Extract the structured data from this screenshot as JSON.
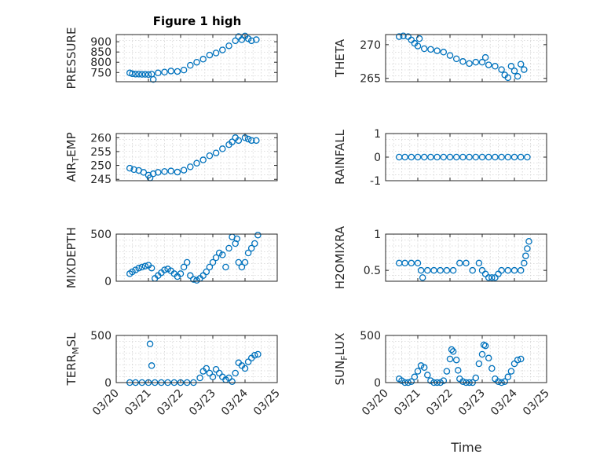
{
  "chart_data": [
    {
      "type": "scatter",
      "panel": "pressure",
      "title": "Figure 1 high",
      "ylabel": "PRESSURE",
      "xlabel": "",
      "xlim": [
        0,
        5
      ],
      "ylim": [
        705,
        935
      ],
      "yticks": [
        750,
        800,
        850,
        900
      ],
      "xticks": [
        0,
        1,
        2,
        3,
        4,
        5
      ],
      "xticklabels": [
        "",
        "",
        "",
        "",
        "",
        ""
      ],
      "grid": true,
      "marker_color": "#0072BD",
      "points": [
        [
          0.42,
          748
        ],
        [
          0.5,
          744
        ],
        [
          0.6,
          742
        ],
        [
          0.7,
          742
        ],
        [
          0.8,
          741
        ],
        [
          0.9,
          741
        ],
        [
          1.0,
          740
        ],
        [
          1.1,
          742
        ],
        [
          1.15,
          716
        ],
        [
          1.3,
          748
        ],
        [
          1.5,
          752
        ],
        [
          1.7,
          757
        ],
        [
          1.9,
          755
        ],
        [
          2.1,
          762
        ],
        [
          2.3,
          785
        ],
        [
          2.5,
          800
        ],
        [
          2.7,
          815
        ],
        [
          2.9,
          835
        ],
        [
          3.1,
          845
        ],
        [
          3.3,
          860
        ],
        [
          3.5,
          880
        ],
        [
          3.7,
          905
        ],
        [
          3.8,
          925
        ],
        [
          3.9,
          910
        ],
        [
          4.0,
          928
        ],
        [
          4.1,
          915
        ],
        [
          4.2,
          905
        ],
        [
          4.35,
          910
        ]
      ]
    },
    {
      "type": "scatter",
      "panel": "theta",
      "title": "",
      "ylabel": "THETA",
      "xlabel": "",
      "xlim": [
        0,
        5
      ],
      "ylim": [
        264.5,
        271.5
      ],
      "yticks": [
        265,
        270
      ],
      "xticks": [
        0,
        1,
        2,
        3,
        4,
        5
      ],
      "xticklabels": [
        "",
        "",
        "",
        "",
        "",
        ""
      ],
      "grid": true,
      "marker_color": "#0072BD",
      "points": [
        [
          0.42,
          271.2
        ],
        [
          0.55,
          271.3
        ],
        [
          0.7,
          271.2
        ],
        [
          0.8,
          270.7
        ],
        [
          0.9,
          270.2
        ],
        [
          1.0,
          269.8
        ],
        [
          1.05,
          270.9
        ],
        [
          1.2,
          269.4
        ],
        [
          1.4,
          269.3
        ],
        [
          1.6,
          269.1
        ],
        [
          1.8,
          268.9
        ],
        [
          2.0,
          268.4
        ],
        [
          2.2,
          267.9
        ],
        [
          2.4,
          267.5
        ],
        [
          2.6,
          267.2
        ],
        [
          2.8,
          267.4
        ],
        [
          3.0,
          267.4
        ],
        [
          3.1,
          268.1
        ],
        [
          3.2,
          267.0
        ],
        [
          3.4,
          266.8
        ],
        [
          3.6,
          266.3
        ],
        [
          3.7,
          265.5
        ],
        [
          3.8,
          265.1
        ],
        [
          3.9,
          266.8
        ],
        [
          4.0,
          266.1
        ],
        [
          4.1,
          265.3
        ],
        [
          4.2,
          267.1
        ],
        [
          4.3,
          266.3
        ]
      ]
    },
    {
      "type": "scatter",
      "panel": "air_temp",
      "title": "",
      "ylabel": "AIR_TEMP",
      "xlabel": "",
      "xlim": [
        0,
        5
      ],
      "ylim": [
        244.5,
        261.5
      ],
      "yticks": [
        245,
        250,
        255,
        260
      ],
      "xticks": [
        0,
        1,
        2,
        3,
        4,
        5
      ],
      "xticklabels": [
        "",
        "",
        "",
        "",
        "",
        ""
      ],
      "grid": true,
      "marker_color": "#0072BD",
      "points": [
        [
          0.42,
          249.0
        ],
        [
          0.55,
          248.5
        ],
        [
          0.7,
          248.2
        ],
        [
          0.85,
          247.5
        ],
        [
          1.0,
          246.5
        ],
        [
          1.05,
          245.5
        ],
        [
          1.15,
          247.0
        ],
        [
          1.3,
          247.5
        ],
        [
          1.5,
          247.8
        ],
        [
          1.7,
          248.0
        ],
        [
          1.9,
          247.6
        ],
        [
          2.1,
          248.3
        ],
        [
          2.3,
          249.5
        ],
        [
          2.5,
          250.8
        ],
        [
          2.7,
          252.0
        ],
        [
          2.9,
          253.5
        ],
        [
          3.1,
          254.5
        ],
        [
          3.3,
          256.0
        ],
        [
          3.5,
          257.5
        ],
        [
          3.6,
          258.5
        ],
        [
          3.7,
          260.0
        ],
        [
          3.8,
          259.0
        ],
        [
          4.0,
          260.0
        ],
        [
          4.1,
          259.5
        ],
        [
          4.2,
          259.0
        ],
        [
          4.35,
          259.0
        ]
      ]
    },
    {
      "type": "scatter",
      "panel": "rainfall",
      "title": "",
      "ylabel": "RAINFALL",
      "xlabel": "",
      "xlim": [
        0,
        5
      ],
      "ylim": [
        -1,
        1
      ],
      "yticks": [
        -1,
        0,
        1
      ],
      "xticks": [
        0,
        1,
        2,
        3,
        4,
        5
      ],
      "xticklabels": [
        "",
        "",
        "",
        "",
        "",
        ""
      ],
      "grid": true,
      "marker_color": "#0072BD",
      "points": [
        [
          0.42,
          0
        ],
        [
          0.6,
          0
        ],
        [
          0.8,
          0
        ],
        [
          1.0,
          0
        ],
        [
          1.2,
          0
        ],
        [
          1.4,
          0
        ],
        [
          1.6,
          0
        ],
        [
          1.8,
          0
        ],
        [
          2.0,
          0
        ],
        [
          2.2,
          0
        ],
        [
          2.4,
          0
        ],
        [
          2.6,
          0
        ],
        [
          2.8,
          0
        ],
        [
          3.0,
          0
        ],
        [
          3.2,
          0
        ],
        [
          3.4,
          0
        ],
        [
          3.6,
          0
        ],
        [
          3.8,
          0
        ],
        [
          4.0,
          0
        ],
        [
          4.2,
          0
        ],
        [
          4.4,
          0
        ]
      ]
    },
    {
      "type": "scatter",
      "panel": "mixdepth",
      "title": "",
      "ylabel": "MIXDEPTH",
      "xlabel": "",
      "xlim": [
        0,
        5
      ],
      "ylim": [
        0,
        500
      ],
      "yticks": [
        0,
        500
      ],
      "xticks": [
        0,
        1,
        2,
        3,
        4,
        5
      ],
      "xticklabels": [
        "",
        "",
        "",
        "",
        "",
        ""
      ],
      "grid": true,
      "marker_color": "#0072BD",
      "points": [
        [
          0.42,
          80
        ],
        [
          0.5,
          100
        ],
        [
          0.6,
          120
        ],
        [
          0.7,
          140
        ],
        [
          0.8,
          150
        ],
        [
          0.9,
          160
        ],
        [
          1.0,
          170
        ],
        [
          1.1,
          140
        ],
        [
          1.2,
          30
        ],
        [
          1.3,
          60
        ],
        [
          1.4,
          90
        ],
        [
          1.5,
          120
        ],
        [
          1.6,
          130
        ],
        [
          1.7,
          110
        ],
        [
          1.8,
          80
        ],
        [
          1.9,
          50
        ],
        [
          2.0,
          80
        ],
        [
          2.1,
          150
        ],
        [
          2.2,
          200
        ],
        [
          2.3,
          60
        ],
        [
          2.4,
          20
        ],
        [
          2.5,
          10
        ],
        [
          2.6,
          30
        ],
        [
          2.7,
          60
        ],
        [
          2.8,
          100
        ],
        [
          2.9,
          150
        ],
        [
          3.0,
          200
        ],
        [
          3.1,
          250
        ],
        [
          3.2,
          300
        ],
        [
          3.3,
          280
        ],
        [
          3.4,
          150
        ],
        [
          3.5,
          350
        ],
        [
          3.6,
          470
        ],
        [
          3.7,
          400
        ],
        [
          3.75,
          450
        ],
        [
          3.8,
          200
        ],
        [
          3.9,
          150
        ],
        [
          4.0,
          200
        ],
        [
          4.1,
          300
        ],
        [
          4.2,
          350
        ],
        [
          4.3,
          400
        ],
        [
          4.4,
          490
        ]
      ]
    },
    {
      "type": "scatter",
      "panel": "h2omixra",
      "title": "",
      "ylabel": "H2OMIXRA",
      "xlabel": "",
      "xlim": [
        0,
        5
      ],
      "ylim": [
        0.35,
        1.0
      ],
      "yticks": [
        0.5,
        1
      ],
      "xticks": [
        0,
        1,
        2,
        3,
        4,
        5
      ],
      "xticklabels": [
        "",
        "",
        "",
        "",
        "",
        ""
      ],
      "grid": true,
      "marker_color": "#0072BD",
      "points": [
        [
          0.42,
          0.6
        ],
        [
          0.6,
          0.6
        ],
        [
          0.8,
          0.6
        ],
        [
          1.0,
          0.6
        ],
        [
          1.1,
          0.5
        ],
        [
          1.15,
          0.4
        ],
        [
          1.3,
          0.5
        ],
        [
          1.5,
          0.5
        ],
        [
          1.7,
          0.5
        ],
        [
          1.9,
          0.5
        ],
        [
          2.1,
          0.5
        ],
        [
          2.3,
          0.6
        ],
        [
          2.5,
          0.6
        ],
        [
          2.7,
          0.5
        ],
        [
          2.9,
          0.6
        ],
        [
          3.0,
          0.5
        ],
        [
          3.1,
          0.45
        ],
        [
          3.2,
          0.4
        ],
        [
          3.3,
          0.4
        ],
        [
          3.4,
          0.4
        ],
        [
          3.5,
          0.45
        ],
        [
          3.6,
          0.5
        ],
        [
          3.8,
          0.5
        ],
        [
          4.0,
          0.5
        ],
        [
          4.2,
          0.5
        ],
        [
          4.3,
          0.6
        ],
        [
          4.35,
          0.7
        ],
        [
          4.4,
          0.8
        ],
        [
          4.45,
          0.9
        ]
      ]
    },
    {
      "type": "scatter",
      "panel": "terr_msl",
      "title": "",
      "ylabel": "TERR_MSL",
      "xlabel": "",
      "xlim": [
        0,
        5
      ],
      "ylim": [
        0,
        500
      ],
      "yticks": [
        0,
        500
      ],
      "xticks": [
        0,
        1,
        2,
        3,
        4,
        5
      ],
      "xticklabels": [
        "03/20",
        "03/21",
        "03/22",
        "03/23",
        "03/24",
        "03/25"
      ],
      "grid": true,
      "marker_color": "#0072BD",
      "points": [
        [
          0.42,
          0
        ],
        [
          0.6,
          0
        ],
        [
          0.8,
          0
        ],
        [
          1.0,
          0
        ],
        [
          1.05,
          410
        ],
        [
          1.1,
          180
        ],
        [
          1.2,
          0
        ],
        [
          1.4,
          0
        ],
        [
          1.6,
          0
        ],
        [
          1.8,
          0
        ],
        [
          2.0,
          0
        ],
        [
          2.2,
          0
        ],
        [
          2.4,
          0
        ],
        [
          2.6,
          50
        ],
        [
          2.7,
          120
        ],
        [
          2.8,
          150
        ],
        [
          2.9,
          100
        ],
        [
          3.0,
          60
        ],
        [
          3.1,
          140
        ],
        [
          3.2,
          100
        ],
        [
          3.3,
          60
        ],
        [
          3.4,
          30
        ],
        [
          3.5,
          50
        ],
        [
          3.6,
          10
        ],
        [
          3.7,
          100
        ],
        [
          3.8,
          210
        ],
        [
          3.9,
          180
        ],
        [
          4.0,
          150
        ],
        [
          4.1,
          220
        ],
        [
          4.2,
          260
        ],
        [
          4.3,
          290
        ],
        [
          4.4,
          300
        ]
      ]
    },
    {
      "type": "scatter",
      "panel": "sun_flux",
      "title": "",
      "ylabel": "SUN_FLUX",
      "xlabel": "Time",
      "xlim": [
        0,
        5
      ],
      "ylim": [
        0,
        500
      ],
      "yticks": [
        0,
        500
      ],
      "xticks": [
        0,
        1,
        2,
        3,
        4,
        5
      ],
      "xticklabels": [
        "03/20",
        "03/21",
        "03/22",
        "03/23",
        "03/24",
        "03/25"
      ],
      "grid": true,
      "marker_color": "#0072BD",
      "points": [
        [
          0.42,
          40
        ],
        [
          0.5,
          20
        ],
        [
          0.6,
          0
        ],
        [
          0.7,
          0
        ],
        [
          0.8,
          10
        ],
        [
          0.9,
          60
        ],
        [
          1.0,
          120
        ],
        [
          1.1,
          180
        ],
        [
          1.2,
          160
        ],
        [
          1.3,
          80
        ],
        [
          1.4,
          20
        ],
        [
          1.5,
          0
        ],
        [
          1.6,
          0
        ],
        [
          1.7,
          0
        ],
        [
          1.8,
          20
        ],
        [
          1.9,
          120
        ],
        [
          2.0,
          250
        ],
        [
          2.05,
          350
        ],
        [
          2.1,
          330
        ],
        [
          2.2,
          240
        ],
        [
          2.25,
          130
        ],
        [
          2.3,
          40
        ],
        [
          2.4,
          10
        ],
        [
          2.5,
          0
        ],
        [
          2.6,
          0
        ],
        [
          2.7,
          0
        ],
        [
          2.8,
          50
        ],
        [
          2.9,
          200
        ],
        [
          3.0,
          300
        ],
        [
          3.05,
          400
        ],
        [
          3.1,
          390
        ],
        [
          3.2,
          260
        ],
        [
          3.3,
          150
        ],
        [
          3.4,
          40
        ],
        [
          3.5,
          10
        ],
        [
          3.6,
          0
        ],
        [
          3.7,
          10
        ],
        [
          3.8,
          60
        ],
        [
          3.9,
          120
        ],
        [
          4.0,
          200
        ],
        [
          4.1,
          240
        ],
        [
          4.2,
          250
        ]
      ]
    }
  ]
}
